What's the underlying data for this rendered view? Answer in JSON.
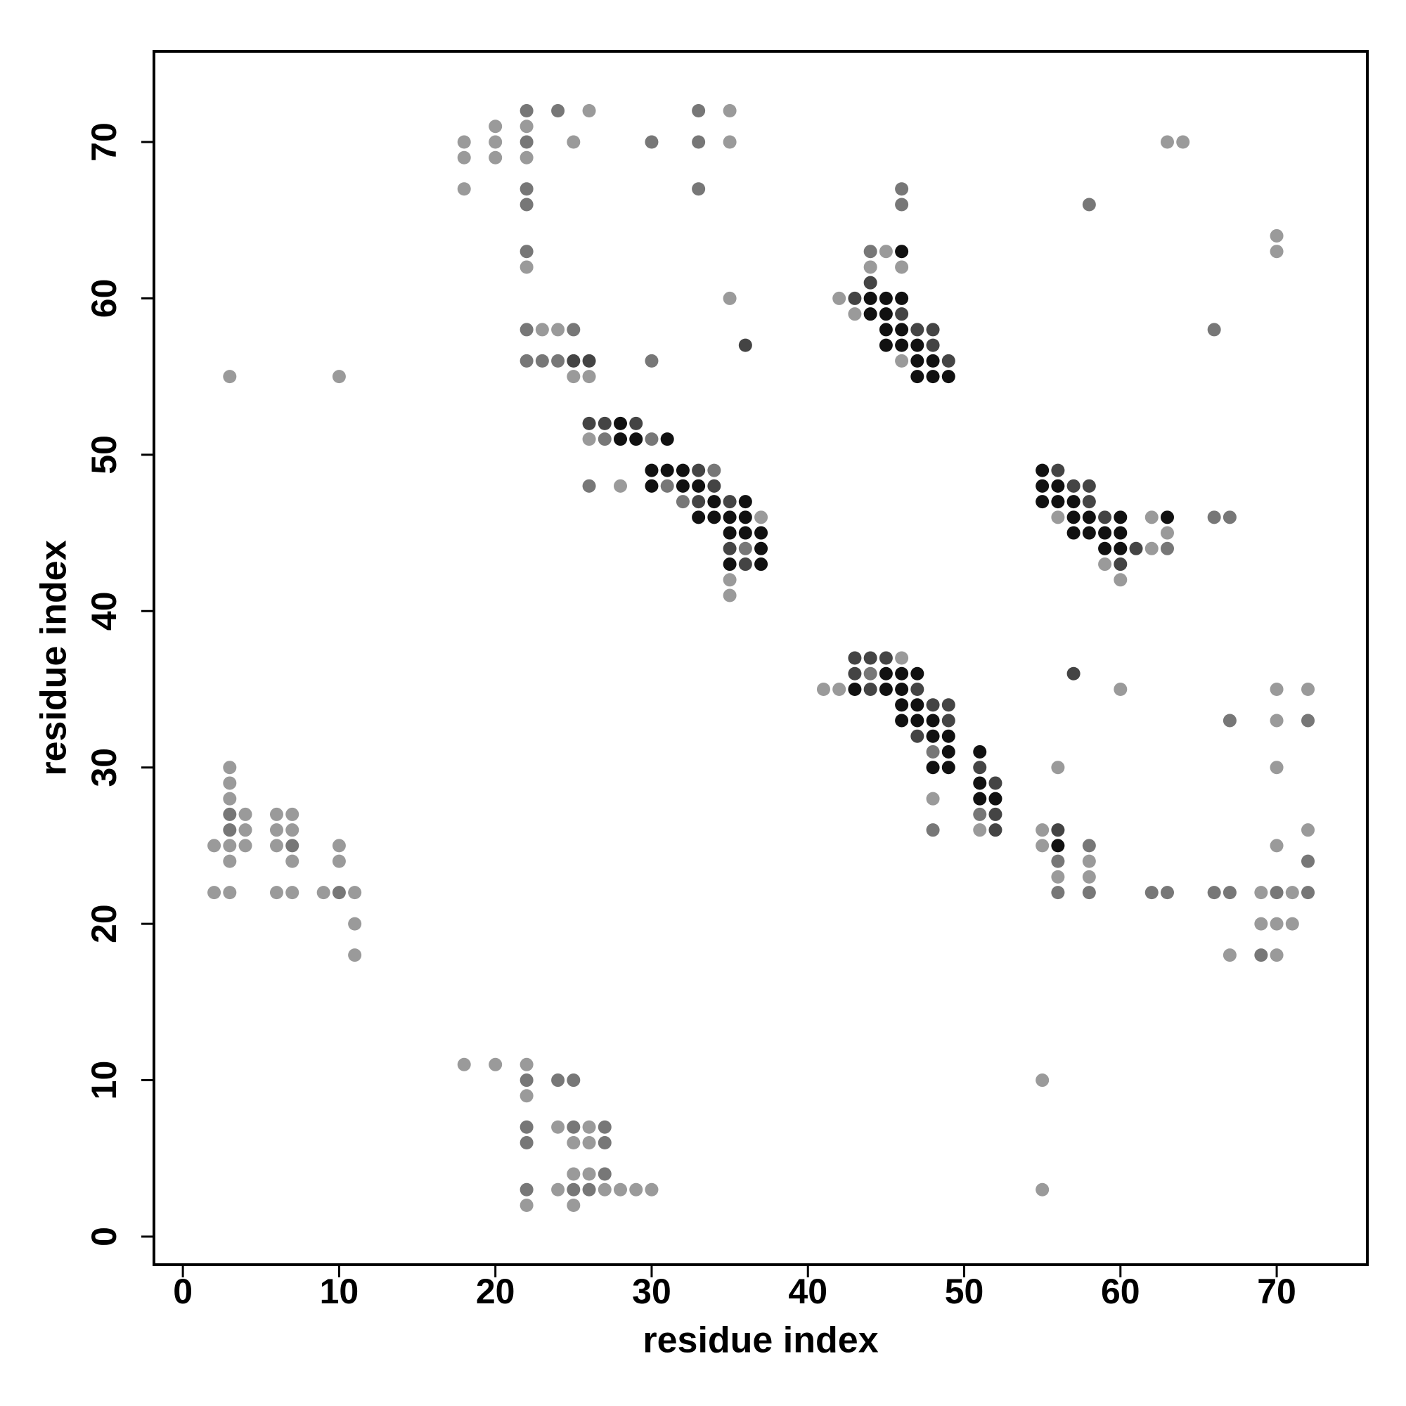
{
  "chart_data": {
    "type": "scatter",
    "x_label": "residue index",
    "y_label": "residue index",
    "xlim": [
      -1.85,
      75.8
    ],
    "ylim": [
      -1.8,
      75.8
    ],
    "xticks": [
      0,
      10,
      20,
      30,
      40,
      50,
      60,
      70
    ],
    "yticks": [
      0,
      10,
      20,
      30,
      40,
      50,
      60,
      70
    ],
    "series": [
      {
        "color": "#9a9a9a",
        "x": [
          2,
          2,
          3,
          3,
          3,
          3,
          3,
          3,
          4,
          4,
          4,
          6,
          6,
          6,
          6,
          7,
          7,
          7,
          7,
          9,
          10,
          10,
          11,
          11,
          11,
          3,
          10,
          18,
          18,
          18,
          20,
          20,
          20,
          22,
          22,
          22,
          25,
          26,
          35,
          35,
          35,
          23,
          24,
          25,
          26,
          26,
          28,
          37,
          35,
          35,
          18,
          20,
          22,
          22,
          24,
          26,
          25,
          26,
          22,
          24,
          27,
          28,
          29,
          30,
          25,
          26,
          25,
          41,
          42,
          46,
          48,
          51,
          55,
          55,
          58,
          56,
          58,
          56,
          60,
          67,
          69,
          71,
          69,
          70,
          71,
          70,
          70,
          70,
          70,
          70,
          72,
          72,
          55,
          55,
          42,
          43,
          45,
          44,
          46,
          46,
          56,
          59,
          60,
          62,
          62,
          63,
          63,
          64,
          70,
          70
        ],
        "values": [
          25,
          22,
          30,
          29,
          28,
          25,
          24,
          22,
          27,
          26,
          25,
          27,
          26,
          25,
          22,
          27,
          26,
          24,
          22,
          22,
          25,
          24,
          22,
          20,
          18,
          55,
          55,
          70,
          69,
          67,
          71,
          70,
          69,
          71,
          69,
          62,
          70,
          72,
          72,
          70,
          60,
          58,
          58,
          55,
          55,
          51,
          48,
          46,
          42,
          41,
          11,
          11,
          11,
          9,
          7,
          7,
          6,
          6,
          2,
          3,
          3,
          3,
          3,
          3,
          4,
          4,
          2,
          35,
          35,
          37,
          28,
          26,
          26,
          25,
          24,
          23,
          23,
          30,
          35,
          18,
          22,
          22,
          20,
          20,
          20,
          18,
          35,
          33,
          30,
          25,
          35,
          26,
          10,
          3,
          60,
          59,
          63,
          62,
          62,
          56,
          46,
          43,
          42,
          46,
          44,
          45,
          70,
          70,
          64,
          63
        ]
      },
      {
        "color": "#777777",
        "x": [
          3,
          3,
          7,
          10,
          22,
          22,
          22,
          22,
          22,
          24,
          30,
          33,
          33,
          33,
          22,
          25,
          22,
          23,
          24,
          30,
          27,
          30,
          26,
          34,
          31,
          32,
          36,
          22,
          24,
          25,
          22,
          22,
          25,
          27,
          27,
          22,
          25,
          26,
          27,
          44,
          48,
          48,
          51,
          58,
          56,
          56,
          58,
          62,
          63,
          66,
          67,
          67,
          70,
          72,
          69,
          72,
          72,
          44,
          46,
          46,
          63,
          66,
          67,
          58,
          66
        ],
        "values": [
          27,
          26,
          25,
          22,
          72,
          70,
          67,
          66,
          63,
          72,
          70,
          72,
          70,
          67,
          58,
          58,
          56,
          56,
          56,
          56,
          51,
          51,
          48,
          49,
          48,
          47,
          44,
          10,
          10,
          10,
          7,
          6,
          7,
          7,
          6,
          3,
          3,
          3,
          4,
          36,
          31,
          26,
          27,
          25,
          24,
          22,
          22,
          22,
          22,
          22,
          22,
          33,
          22,
          22,
          18,
          33,
          24,
          63,
          67,
          66,
          44,
          46,
          46,
          66,
          58
        ]
      },
      {
        "color": "#444444",
        "x": [
          25,
          26,
          36,
          26,
          27,
          29,
          33,
          34,
          33,
          35,
          35,
          36,
          43,
          44,
          45,
          43,
          44,
          47,
          48,
          49,
          49,
          47,
          51,
          52,
          52,
          52,
          56,
          57,
          43,
          44,
          46,
          47,
          48,
          48,
          49,
          56,
          57,
          58,
          58,
          59,
          61,
          60
        ],
        "values": [
          56,
          56,
          57,
          52,
          52,
          52,
          49,
          48,
          47,
          47,
          44,
          43,
          37,
          37,
          37,
          36,
          35,
          35,
          34,
          34,
          33,
          32,
          30,
          29,
          27,
          26,
          26,
          36,
          60,
          61,
          59,
          58,
          58,
          57,
          56,
          49,
          48,
          48,
          47,
          46,
          44,
          43
        ]
      },
      {
        "color": "#111111",
        "x": [
          28,
          28,
          29,
          31,
          30,
          31,
          32,
          30,
          32,
          33,
          34,
          36,
          33,
          34,
          35,
          36,
          35,
          36,
          37,
          37,
          35,
          37,
          45,
          46,
          47,
          43,
          45,
          46,
          46,
          47,
          46,
          47,
          48,
          48,
          49,
          49,
          48,
          49,
          51,
          51,
          51,
          52,
          56,
          46,
          44,
          45,
          46,
          44,
          45,
          45,
          46,
          45,
          46,
          47,
          47,
          48,
          47,
          48,
          49,
          55,
          55,
          56,
          55,
          56,
          57,
          57,
          58,
          60,
          57,
          58,
          59,
          60,
          59,
          60,
          63
        ],
        "values": [
          52,
          51,
          51,
          51,
          49,
          49,
          49,
          48,
          48,
          48,
          47,
          47,
          46,
          46,
          46,
          46,
          45,
          45,
          45,
          44,
          43,
          43,
          36,
          36,
          36,
          35,
          35,
          35,
          34,
          34,
          33,
          33,
          33,
          32,
          32,
          31,
          30,
          30,
          31,
          29,
          28,
          28,
          25,
          63,
          60,
          60,
          60,
          59,
          59,
          58,
          58,
          57,
          57,
          57,
          56,
          56,
          55,
          55,
          55,
          49,
          48,
          48,
          47,
          47,
          47,
          46,
          46,
          46,
          45,
          45,
          45,
          45,
          44,
          44,
          46
        ]
      }
    ]
  }
}
